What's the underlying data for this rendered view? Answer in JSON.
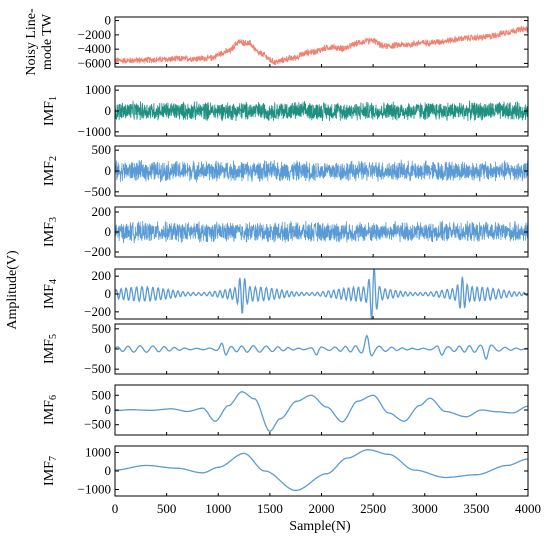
{
  "chart_data": {
    "type": "line",
    "xlabel": "Sample(N)",
    "ylabel": "Amplitude(V)",
    "xlim": [
      0,
      4000
    ],
    "x_ticks": [
      0,
      500,
      1000,
      1500,
      2000,
      2500,
      3000,
      3500,
      4000
    ],
    "grid": false,
    "legend": "none",
    "panels": [
      {
        "label_lines": [
          "Noisy Line-",
          "mode TW"
        ],
        "label_sub": "",
        "color": "#f08070",
        "ylim": [
          -6500,
          500
        ],
        "yticks": [
          0,
          -2000,
          -4000,
          -6000
        ],
        "ytick_labels": [
          "0",
          "−2000",
          "−4000",
          "−6000"
        ],
        "noise_amp": 450,
        "trend": [
          [
            0,
            -5600
          ],
          [
            900,
            -5300
          ],
          [
            1100,
            -4300
          ],
          [
            1200,
            -3000
          ],
          [
            1300,
            -3200
          ],
          [
            1400,
            -4600
          ],
          [
            1550,
            -5800
          ],
          [
            1700,
            -5300
          ],
          [
            1900,
            -4400
          ],
          [
            2100,
            -3700
          ],
          [
            2200,
            -3900
          ],
          [
            2400,
            -3000
          ],
          [
            2500,
            -2800
          ],
          [
            2600,
            -3600
          ],
          [
            2800,
            -3400
          ],
          [
            3000,
            -3100
          ],
          [
            3500,
            -2400
          ],
          [
            4000,
            -1200
          ]
        ]
      },
      {
        "label_lines": [
          "IMF"
        ],
        "label_sub": "1",
        "color": "#1f8f80",
        "ylim": [
          -1200,
          1200
        ],
        "yticks": [
          1000,
          0,
          -1000
        ],
        "ytick_labels": [
          "1000",
          "0",
          "−1000"
        ],
        "noise_amp": 420,
        "trend": [
          [
            0,
            0
          ],
          [
            4000,
            0
          ]
        ]
      },
      {
        "label_lines": [
          "IMF"
        ],
        "label_sub": "2",
        "color": "#5b9bd5",
        "ylim": [
          -600,
          600
        ],
        "yticks": [
          500,
          0,
          -500
        ],
        "ytick_labels": [
          "500",
          "0",
          "−500"
        ],
        "noise_amp": 230,
        "trend": [
          [
            0,
            0
          ],
          [
            4000,
            0
          ]
        ]
      },
      {
        "label_lines": [
          "IMF"
        ],
        "label_sub": "3",
        "color": "#5b9bd5",
        "ylim": [
          -250,
          250
        ],
        "yticks": [
          200,
          0,
          -200
        ],
        "ytick_labels": [
          "200",
          "0",
          "−200"
        ],
        "noise_amp": 95,
        "trend": [
          [
            0,
            0
          ],
          [
            4000,
            0
          ]
        ]
      },
      {
        "label_lines": [
          "IMF"
        ],
        "label_sub": "4",
        "color": "#5b9bd5",
        "ylim": [
          -280,
          280
        ],
        "yticks": [
          200,
          0,
          -200
        ],
        "ytick_labels": [
          "200",
          "0",
          "−200"
        ],
        "osc_amp": 80,
        "osc_period": 50,
        "bursts": [
          [
            1230,
            160
          ],
          [
            2500,
            260
          ],
          [
            3360,
            130
          ]
        ],
        "trend": [
          [
            0,
            0
          ],
          [
            4000,
            0
          ]
        ]
      },
      {
        "label_lines": [
          "IMF"
        ],
        "label_sub": "5",
        "color": "#5b9bd5",
        "ylim": [
          -620,
          620
        ],
        "yticks": [
          500,
          0,
          -500
        ],
        "ytick_labels": [
          "500",
          "0",
          "−500"
        ],
        "osc_amp": 80,
        "osc_period": 110,
        "bursts": [
          [
            1050,
            250
          ],
          [
            1950,
            520
          ],
          [
            2450,
            280
          ],
          [
            3150,
            260
          ],
          [
            3600,
            200
          ]
        ],
        "trend": [
          [
            0,
            0
          ],
          [
            4000,
            0
          ]
        ]
      },
      {
        "label_lines": [
          "IMF"
        ],
        "label_sub": "6",
        "color": "#5b9bd5",
        "ylim": [
          -850,
          850
        ],
        "yticks": [
          500,
          0,
          -500
        ],
        "ytick_labels": [
          "500",
          "0",
          "−500"
        ],
        "trend": [
          [
            0,
            -20
          ],
          [
            150,
            10
          ],
          [
            350,
            -10
          ],
          [
            550,
            40
          ],
          [
            700,
            -50
          ],
          [
            850,
            60
          ],
          [
            970,
            -380
          ],
          [
            1100,
            150
          ],
          [
            1230,
            620
          ],
          [
            1350,
            380
          ],
          [
            1500,
            -720
          ],
          [
            1600,
            -300
          ],
          [
            1760,
            300
          ],
          [
            1900,
            500
          ],
          [
            2050,
            100
          ],
          [
            2200,
            -400
          ],
          [
            2350,
            300
          ],
          [
            2500,
            500
          ],
          [
            2650,
            -100
          ],
          [
            2800,
            -380
          ],
          [
            2950,
            150
          ],
          [
            3050,
            400
          ],
          [
            3200,
            -50
          ],
          [
            3400,
            -230
          ],
          [
            3550,
            0
          ],
          [
            3700,
            -60
          ],
          [
            3850,
            -100
          ],
          [
            4000,
            130
          ]
        ]
      },
      {
        "label_lines": [
          "IMF"
        ],
        "label_sub": "7",
        "color": "#5b9bd5",
        "ylim": [
          -1350,
          1350
        ],
        "yticks": [
          1000,
          0,
          -1000
        ],
        "ytick_labels": [
          "1000",
          "0",
          "−1000"
        ],
        "trend": [
          [
            0,
            50
          ],
          [
            300,
            300
          ],
          [
            600,
            150
          ],
          [
            850,
            -100
          ],
          [
            1000,
            200
          ],
          [
            1250,
            950
          ],
          [
            1450,
            0
          ],
          [
            1750,
            -1050
          ],
          [
            2050,
            -150
          ],
          [
            2250,
            700
          ],
          [
            2450,
            1150
          ],
          [
            2650,
            900
          ],
          [
            2900,
            50
          ],
          [
            3200,
            -350
          ],
          [
            3500,
            -200
          ],
          [
            3800,
            300
          ],
          [
            4000,
            650
          ]
        ]
      }
    ]
  }
}
